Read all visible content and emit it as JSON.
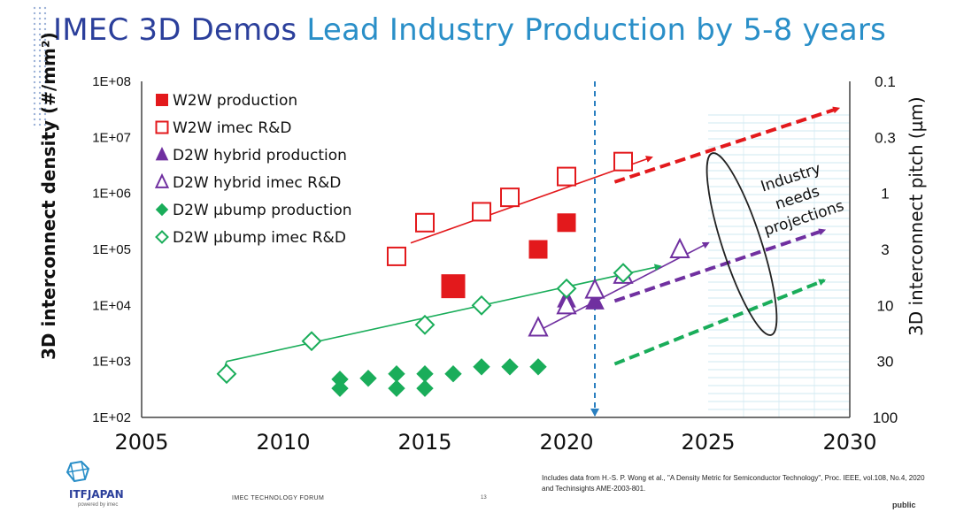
{
  "slide": {
    "title_part1": "IMEC 3D Demos ",
    "title_part2": "Lead Industry Production by 5-8 years",
    "footer_forum": "IMEC TECHNOLOGY FORUM",
    "footer_page": "13",
    "logo_text": "ITFJAPAN",
    "logo_sub": "powered by imec",
    "source_note": "Includes data from H.-S. P. Wong et al., \"A Density Metric for Semiconductor Technology\", Proc. IEEE, vol.108, No.4, 2020 and Techinsights AME-2003-801.",
    "classification": "public"
  },
  "chart_data": {
    "type": "scatter",
    "ylabel": "3D interconnect density (#/mm²)",
    "ylabel_right": "3D interconnect pitch (µm)",
    "xlabel": "",
    "xlim": [
      2005,
      2030
    ],
    "ylim": [
      100,
      100000000
    ],
    "y_scale": "log",
    "x_ticks": [
      "2005",
      "2010",
      "2015",
      "2020",
      "2025",
      "2030"
    ],
    "y_ticks_left": [
      "1E+02",
      "1E+03",
      "1E+04",
      "1E+05",
      "1E+06",
      "1E+07",
      "1E+08"
    ],
    "y_ticks_right": [
      "100",
      "30",
      "10",
      "3",
      "1",
      "0.3",
      "0.1"
    ],
    "legend_position": "top-left",
    "series": [
      {
        "name": "W2W production",
        "marker": "square-filled",
        "color": "#e3191c",
        "points": [
          [
            2016,
            22000
          ],
          [
            2019,
            100000
          ],
          [
            2020,
            300000
          ]
        ]
      },
      {
        "name": "W2W imec R&D",
        "marker": "square-open",
        "color": "#e3191c",
        "points": [
          [
            2014,
            75000
          ],
          [
            2015,
            300000
          ],
          [
            2017,
            470000
          ],
          [
            2018,
            850000
          ],
          [
            2020,
            2000000
          ],
          [
            2022,
            3700000
          ]
        ]
      },
      {
        "name": "D2W hybrid production",
        "marker": "triangle-filled",
        "color": "#7030a0",
        "points": [
          [
            2020,
            13000
          ],
          [
            2021,
            12000
          ]
        ]
      },
      {
        "name": "D2W hybrid imec R&D",
        "marker": "triangle-open",
        "color": "#7030a0",
        "points": [
          [
            2019,
            4000
          ],
          [
            2020,
            10000
          ],
          [
            2021,
            19000
          ],
          [
            2022,
            35000
          ],
          [
            2024,
            100000
          ]
        ]
      },
      {
        "name": "D2W µbump production",
        "marker": "diamond-filled",
        "color": "#1aad5a",
        "points": [
          [
            2012,
            480
          ],
          [
            2012,
            330
          ],
          [
            2013,
            500
          ],
          [
            2014,
            600
          ],
          [
            2014,
            330
          ],
          [
            2015,
            600
          ],
          [
            2015,
            330
          ],
          [
            2016,
            600
          ],
          [
            2017,
            800
          ],
          [
            2018,
            800
          ],
          [
            2019,
            800
          ]
        ]
      },
      {
        "name": "D2W µbump imec R&D",
        "marker": "diamond-open",
        "color": "#1aad5a",
        "points": [
          [
            2008,
            600
          ],
          [
            2011,
            2300
          ],
          [
            2015,
            4500
          ],
          [
            2017,
            10000
          ],
          [
            2020,
            20000
          ],
          [
            2022,
            38000
          ]
        ]
      }
    ],
    "trend_lines": [
      {
        "series": "W2W imec R&D",
        "from": [
          2014.5,
          130000
        ],
        "to": [
          2023,
          4400000
        ],
        "color": "#e3191c"
      },
      {
        "series": "D2W hybrid imec R&D",
        "from": [
          2019,
          3500
        ],
        "to": [
          2025,
          130000
        ],
        "color": "#7030a0"
      },
      {
        "series": "D2W µbump imec R&D",
        "from": [
          2008,
          1000
        ],
        "to": [
          2023.3,
          50000
        ],
        "color": "#1aad5a"
      }
    ],
    "projection_arrows": [
      {
        "from": [
          2021.7,
          1600000
        ],
        "to": [
          2029.6,
          33000000
        ],
        "color": "#e3191c"
      },
      {
        "from": [
          2021.7,
          12000
        ],
        "to": [
          2029.1,
          220000
        ],
        "color": "#7030a0"
      },
      {
        "from": [
          2021.7,
          900
        ],
        "to": [
          2029.1,
          28000
        ],
        "color": "#1aad5a"
      }
    ],
    "vline": {
      "x": 2021,
      "color": "#2a7fc0"
    },
    "annotation": {
      "text_lines": [
        "Industry",
        "needs",
        "projections"
      ]
    }
  }
}
